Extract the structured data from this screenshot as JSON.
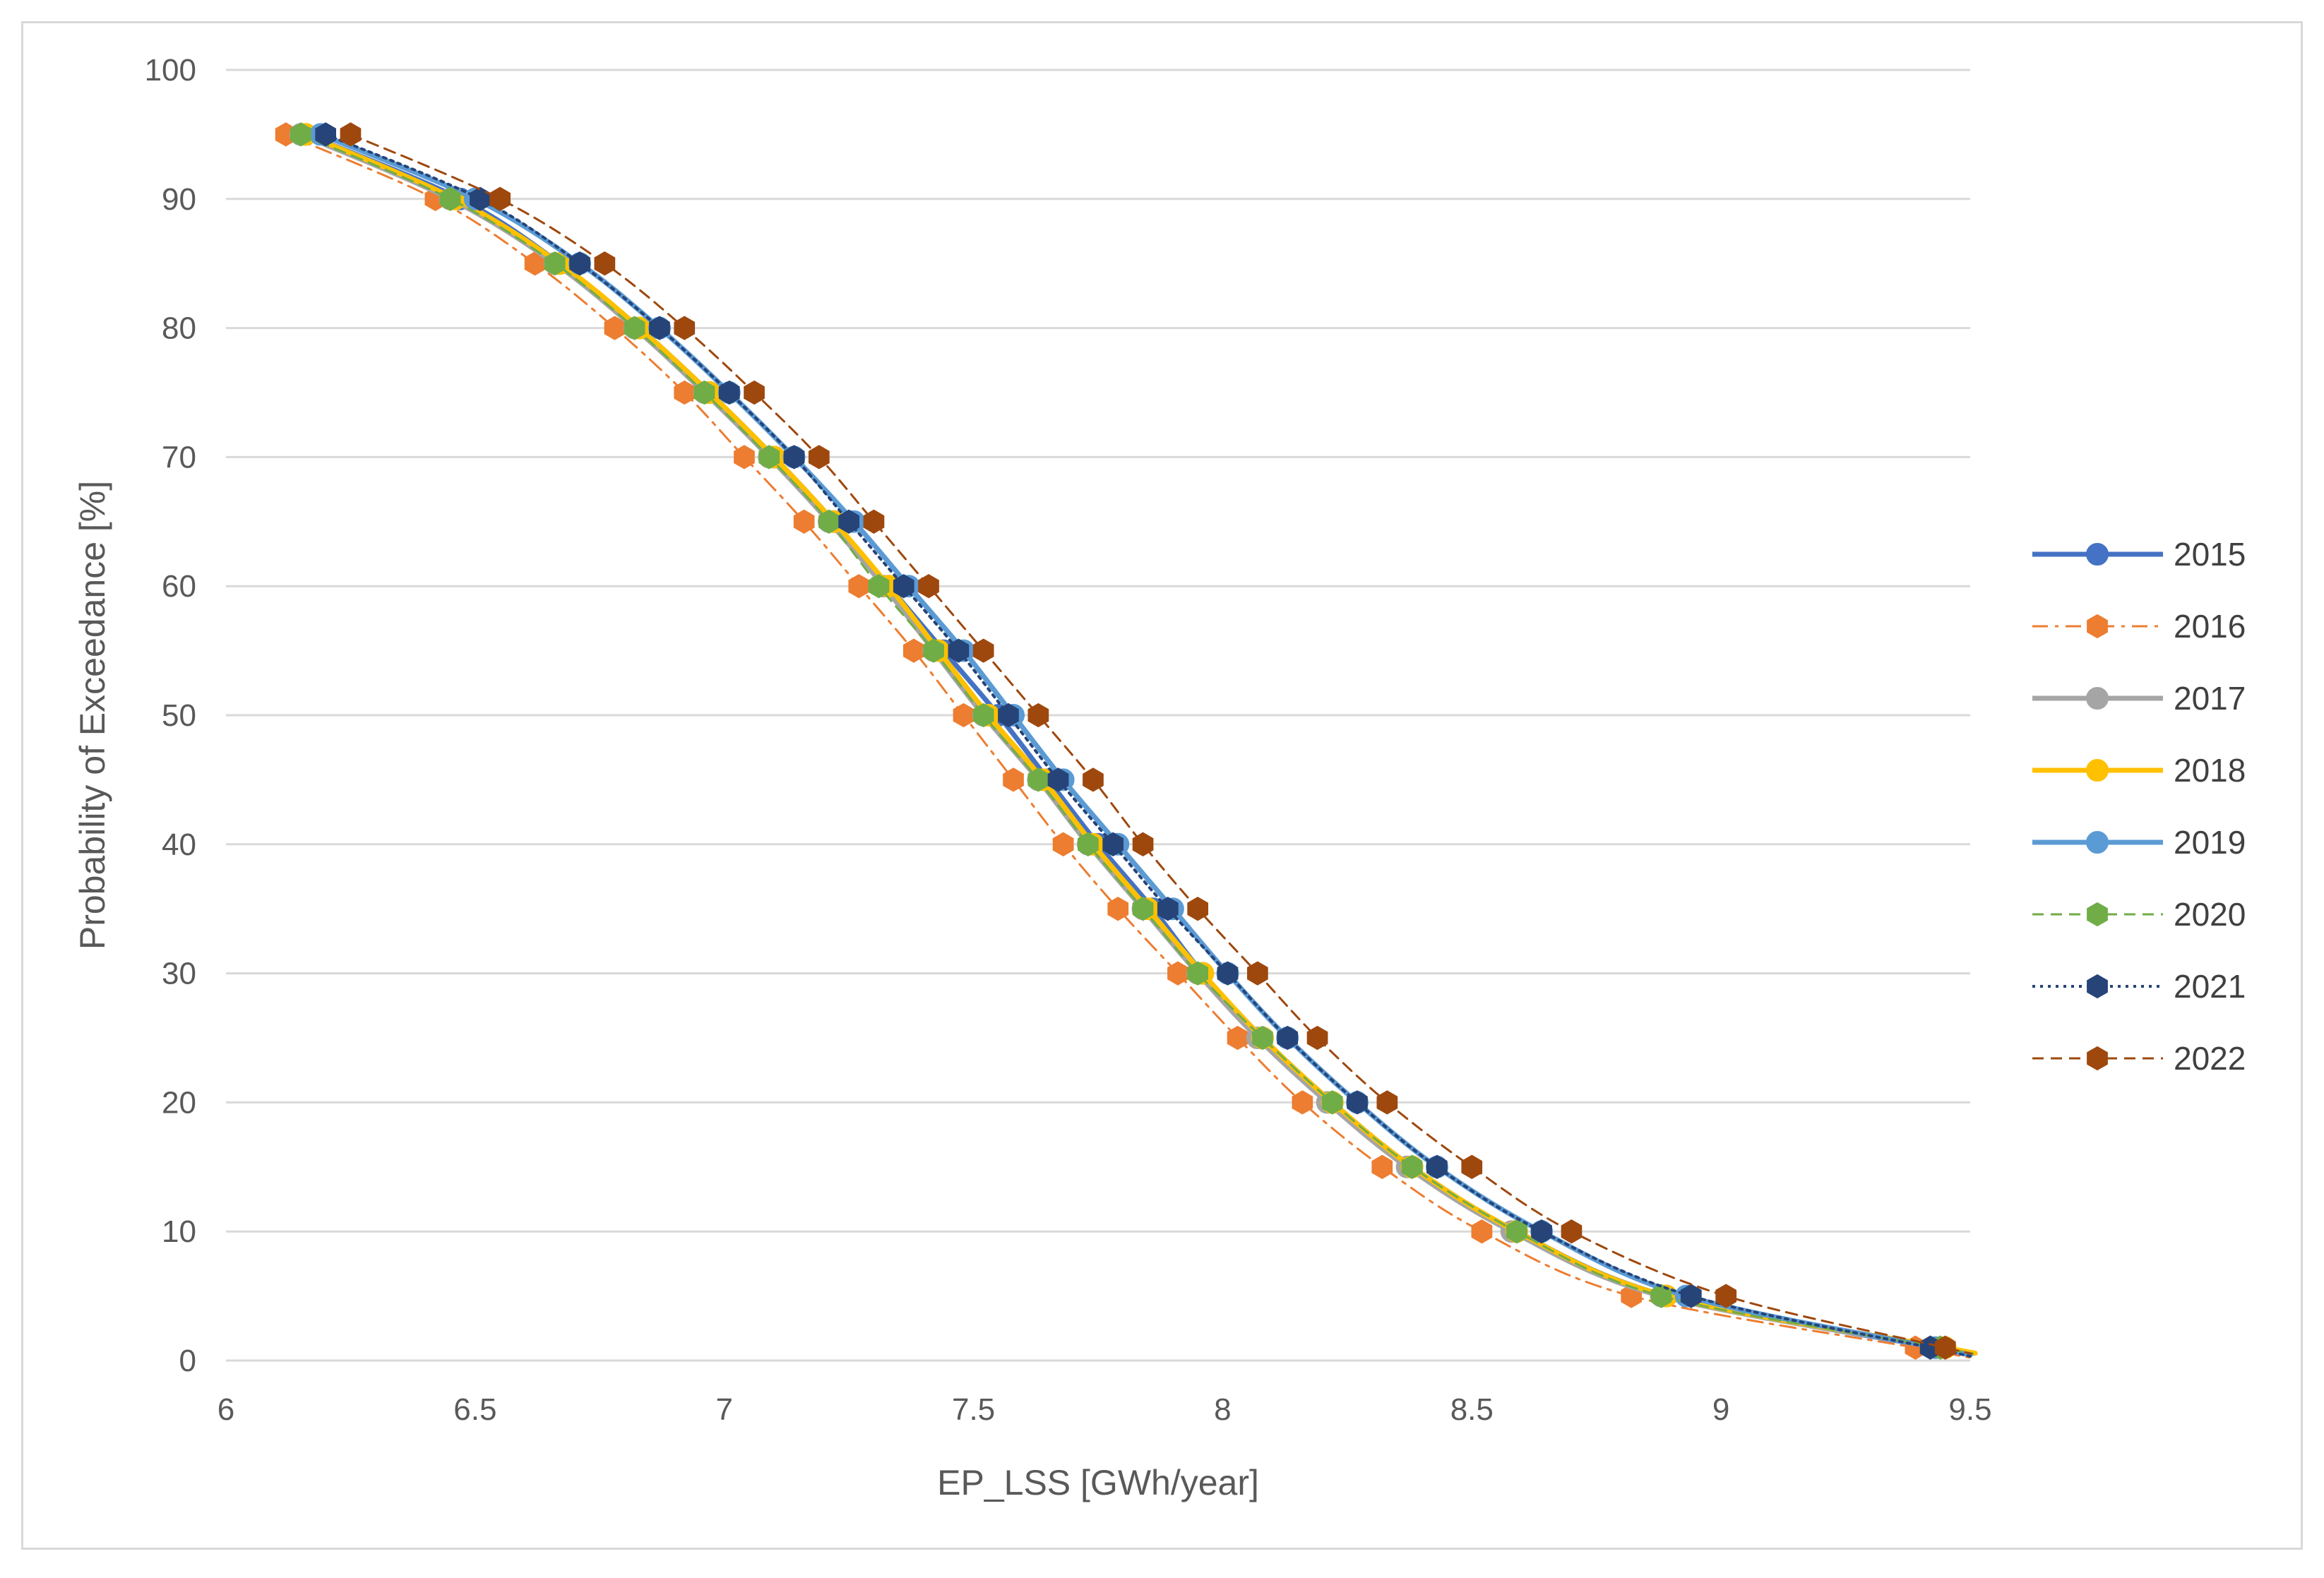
{
  "chart_data": {
    "type": "line",
    "title": "",
    "xlabel": "EP_LSS [GWh/year]",
    "ylabel": "Probability of Exceedance [%]",
    "xlim": [
      6,
      9.5
    ],
    "ylim": [
      0,
      100
    ],
    "x_ticks": [
      "6",
      "6.5",
      "7",
      "7.5",
      "8",
      "8.5",
      "9",
      "9.5"
    ],
    "y_ticks": [
      "0",
      "10",
      "20",
      "30",
      "40",
      "50",
      "60",
      "70",
      "80",
      "90",
      "100"
    ],
    "grid": "horizontal",
    "legend_position": "right",
    "y": [
      95,
      90,
      85,
      80,
      75,
      70,
      65,
      60,
      55,
      50,
      45,
      40,
      35,
      30,
      25,
      20,
      15,
      10,
      5,
      1
    ],
    "series": [
      {
        "name": "2015",
        "color": "#4472C4",
        "line": "solid",
        "width": 7,
        "marker": "circle",
        "x": [
          6.16,
          6.47,
          6.67,
          6.83,
          6.97,
          7.1,
          7.22,
          7.33,
          7.44,
          7.55,
          7.65,
          7.75,
          7.86,
          7.96,
          8.08,
          8.22,
          8.38,
          8.59,
          8.89,
          9.43
        ]
      },
      {
        "name": "2016",
        "color": "#ED7D31",
        "line": "dashdot",
        "width": 3,
        "marker": "hexagon",
        "x": [
          6.12,
          6.42,
          6.62,
          6.78,
          6.92,
          7.04,
          7.16,
          7.27,
          7.38,
          7.48,
          7.58,
          7.68,
          7.79,
          7.91,
          8.03,
          8.16,
          8.32,
          8.52,
          8.82,
          9.39
        ]
      },
      {
        "name": "2017",
        "color": "#A5A5A5",
        "line": "solid",
        "width": 7,
        "marker": "circle",
        "x": [
          6.15,
          6.45,
          6.66,
          6.82,
          6.96,
          7.09,
          7.21,
          7.32,
          7.42,
          7.52,
          7.63,
          7.73,
          7.84,
          7.95,
          8.07,
          8.21,
          8.37,
          8.58,
          8.88,
          9.44
        ]
      },
      {
        "name": "2018",
        "color": "#FFC000",
        "line": "solid",
        "width": 7,
        "marker": "circle",
        "x": [
          6.16,
          6.46,
          6.67,
          6.83,
          6.97,
          7.1,
          7.22,
          7.33,
          7.43,
          7.53,
          7.64,
          7.74,
          7.85,
          7.96,
          8.08,
          8.22,
          8.38,
          8.59,
          8.89,
          9.45
        ]
      },
      {
        "name": "2019",
        "color": "#5B9BD5",
        "line": "solid",
        "width": 7,
        "marker": "circle",
        "x": [
          6.19,
          6.5,
          6.71,
          6.87,
          7.01,
          7.14,
          7.26,
          7.37,
          7.48,
          7.58,
          7.68,
          7.79,
          7.9,
          8.01,
          8.13,
          8.27,
          8.43,
          8.64,
          8.93,
          9.43
        ]
      },
      {
        "name": "2020",
        "color": "#70AD47",
        "line": "dashed",
        "width": 3,
        "marker": "hexagon",
        "x": [
          6.15,
          6.45,
          6.66,
          6.82,
          6.96,
          7.09,
          7.21,
          7.31,
          7.42,
          7.52,
          7.63,
          7.73,
          7.84,
          7.95,
          8.08,
          8.22,
          8.38,
          8.59,
          8.88,
          9.44
        ]
      },
      {
        "name": "2021",
        "color": "#264478",
        "line": "dotted",
        "width": 4,
        "marker": "hexagon",
        "x": [
          6.2,
          6.51,
          6.71,
          6.87,
          7.01,
          7.14,
          7.25,
          7.36,
          7.47,
          7.57,
          7.67,
          7.78,
          7.89,
          8.01,
          8.13,
          8.27,
          8.43,
          8.64,
          8.94,
          9.42
        ]
      },
      {
        "name": "2022",
        "color": "#9E480E",
        "line": "dashed",
        "width": 3,
        "marker": "hexagon",
        "x": [
          6.25,
          6.55,
          6.76,
          6.92,
          7.06,
          7.19,
          7.3,
          7.41,
          7.52,
          7.63,
          7.74,
          7.84,
          7.95,
          8.07,
          8.19,
          8.33,
          8.5,
          8.7,
          9.01,
          9.45
        ]
      }
    ]
  }
}
